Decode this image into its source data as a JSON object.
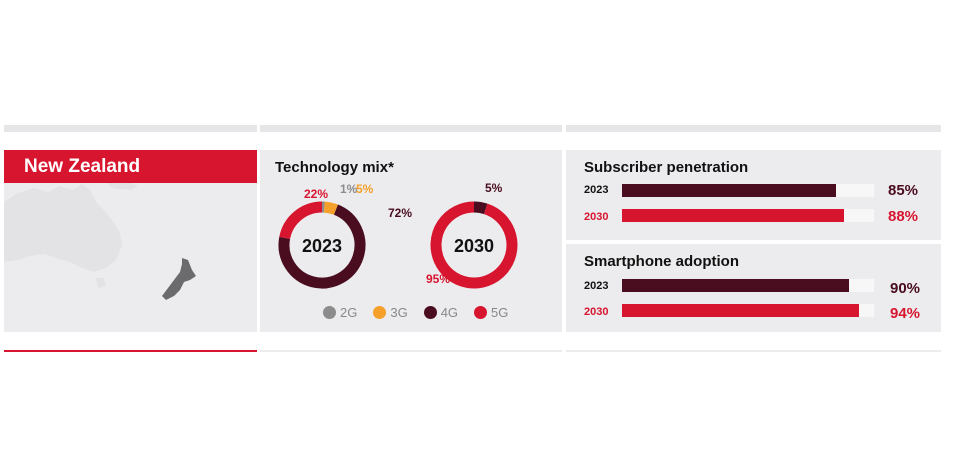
{
  "country": {
    "name": "New Zealand"
  },
  "colors": {
    "red": "#d7152f",
    "maroon": "#4a0d1f",
    "orange": "#f4a02a",
    "grey": "#8c8c8c",
    "map_land": "#e3e3e5",
    "map_nz": "#6b6b6d"
  },
  "chart_data": [
    {
      "type": "pie",
      "title": "Technology mix*",
      "charts": [
        {
          "label": "2023",
          "slices": [
            {
              "name": "2G",
              "value": 1,
              "label": "1%"
            },
            {
              "name": "3G",
              "value": 5,
              "label": "5%"
            },
            {
              "name": "4G",
              "value": 72,
              "label": "72%"
            },
            {
              "name": "5G",
              "value": 22,
              "label": "22%"
            }
          ]
        },
        {
          "label": "2030",
          "slices": [
            {
              "name": "4G",
              "value": 5,
              "label": "5%"
            },
            {
              "name": "5G",
              "value": 95,
              "label": "95%"
            }
          ]
        }
      ],
      "legend": [
        "2G",
        "3G",
        "4G",
        "5G"
      ]
    },
    {
      "type": "bar",
      "title": "Subscriber penetration",
      "categories": [
        "2023",
        "2030"
      ],
      "values": [
        85,
        88
      ],
      "labels": [
        "85%",
        "88%"
      ],
      "ylim": [
        0,
        100
      ]
    },
    {
      "type": "bar",
      "title": "Smartphone adoption",
      "categories": [
        "2023",
        "2030"
      ],
      "values": [
        90,
        94
      ],
      "labels": [
        "90%",
        "94%"
      ],
      "ylim": [
        0,
        100
      ]
    }
  ]
}
